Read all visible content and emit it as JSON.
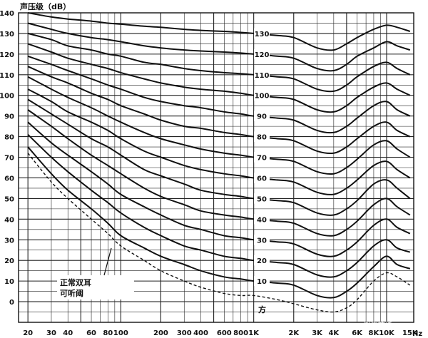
{
  "chart_data": {
    "type": "line",
    "title": "",
    "ylabel": "声压级（dB）",
    "xlabel": "",
    "x_unit": "Hz",
    "x_scale": "log",
    "xlim": [
      17,
      16000
    ],
    "ylim": [
      -10,
      140
    ],
    "grid": true,
    "y_ticks": [
      0,
      10,
      20,
      30,
      40,
      50,
      60,
      70,
      80,
      90,
      100,
      110,
      120,
      130,
      140
    ],
    "x_tick_labels": [
      {
        "x": 20,
        "label": "20"
      },
      {
        "x": 30,
        "label": "30"
      },
      {
        "x": 40,
        "label": "40"
      },
      {
        "x": 60,
        "label": "60"
      },
      {
        "x": 80,
        "label": "80"
      },
      {
        "x": 100,
        "label": "100"
      },
      {
        "x": 200,
        "label": "200"
      },
      {
        "x": 300,
        "label": "300"
      },
      {
        "x": 400,
        "label": "400"
      },
      {
        "x": 600,
        "label": "600"
      },
      {
        "x": 800,
        "label": "800"
      },
      {
        "x": 1000,
        "label": "1K"
      },
      {
        "x": 2000,
        "label": "2K"
      },
      {
        "x": 3000,
        "label": "3K"
      },
      {
        "x": 4000,
        "label": "4K"
      },
      {
        "x": 6000,
        "label": "6K"
      },
      {
        "x": 8000,
        "label": "8K"
      },
      {
        "x": 10000,
        "label": "10K"
      },
      {
        "x": 15000,
        "label": "15K"
      }
    ],
    "contour_unit_label": "方",
    "threshold_label_lines": [
      "正常双耳",
      "可听阈"
    ],
    "threshold_curve": {
      "x": [
        20,
        30,
        40,
        60,
        80,
        100,
        150,
        200,
        300,
        400,
        600,
        800,
        1000,
        1500,
        2000,
        3000,
        4000,
        5000,
        6000,
        8000,
        10000,
        12000,
        15000
      ],
      "y": [
        72,
        58,
        50,
        40,
        33,
        27,
        20,
        15,
        10,
        7,
        4,
        3,
        3,
        1,
        -1,
        -4,
        -5,
        -3,
        1,
        10,
        14,
        12,
        8
      ]
    },
    "series": [
      {
        "name": "10",
        "x": [
          20,
          30,
          40,
          60,
          80,
          100,
          150,
          200,
          300,
          400,
          600,
          800,
          1000,
          1500,
          2000,
          3000,
          4000,
          5000,
          6000,
          8000,
          10000,
          12000,
          15000
        ],
        "y": [
          75,
          62,
          54,
          45,
          38,
          32,
          26,
          22,
          18,
          15,
          12,
          11,
          10,
          9,
          8,
          3,
          2,
          5,
          9,
          17,
          22,
          18,
          16
        ]
      },
      {
        "name": "20",
        "x": [
          20,
          30,
          40,
          60,
          80,
          100,
          150,
          200,
          300,
          400,
          600,
          800,
          1000,
          1500,
          2000,
          3000,
          4000,
          5000,
          6000,
          8000,
          10000,
          12000,
          15000
        ],
        "y": [
          81,
          70,
          63,
          54,
          48,
          43,
          36,
          32,
          27,
          25,
          22,
          21,
          20,
          19,
          18,
          13,
          12,
          15,
          19,
          27,
          30,
          26,
          24
        ]
      },
      {
        "name": "30",
        "x": [
          20,
          30,
          40,
          60,
          80,
          100,
          150,
          200,
          300,
          400,
          600,
          800,
          1000,
          1500,
          2000,
          3000,
          4000,
          5000,
          6000,
          8000,
          10000,
          12000,
          15000
        ],
        "y": [
          87,
          77,
          71,
          63,
          57,
          52,
          46,
          42,
          37,
          35,
          32,
          31,
          30,
          29,
          28,
          23,
          22,
          25,
          29,
          37,
          40,
          36,
          33
        ]
      },
      {
        "name": "40",
        "x": [
          20,
          30,
          40,
          60,
          80,
          100,
          150,
          200,
          300,
          400,
          600,
          800,
          1000,
          1500,
          2000,
          3000,
          4000,
          5000,
          6000,
          8000,
          10000,
          12000,
          15000
        ],
        "y": [
          93,
          85,
          79,
          71,
          66,
          62,
          55,
          51,
          47,
          44,
          42,
          41,
          40,
          39,
          38,
          33,
          32,
          35,
          39,
          47,
          50,
          46,
          42
        ]
      },
      {
        "name": "50",
        "x": [
          20,
          30,
          40,
          60,
          80,
          100,
          150,
          200,
          300,
          400,
          600,
          800,
          1000,
          1500,
          2000,
          3000,
          4000,
          5000,
          6000,
          8000,
          10000,
          12000,
          15000
        ],
        "y": [
          98,
          91,
          86,
          79,
          75,
          71,
          64,
          61,
          57,
          54,
          52,
          51,
          50,
          49,
          48,
          43,
          42,
          45,
          49,
          57,
          59,
          55,
          50
        ]
      },
      {
        "name": "60",
        "x": [
          20,
          30,
          40,
          60,
          80,
          100,
          150,
          200,
          300,
          400,
          600,
          800,
          1000,
          1500,
          2000,
          3000,
          4000,
          5000,
          6000,
          8000,
          10000,
          12000,
          15000
        ],
        "y": [
          103,
          97,
          92,
          87,
          83,
          79,
          73,
          70,
          66,
          64,
          62,
          61,
          60,
          59,
          58,
          53,
          52,
          55,
          59,
          66,
          68,
          64,
          60
        ]
      },
      {
        "name": "70",
        "x": [
          20,
          30,
          40,
          60,
          80,
          100,
          150,
          200,
          300,
          400,
          600,
          800,
          1000,
          1500,
          2000,
          3000,
          4000,
          5000,
          6000,
          8000,
          10000,
          12000,
          15000
        ],
        "y": [
          109,
          103,
          99,
          94,
          90,
          87,
          82,
          79,
          76,
          74,
          72,
          71,
          70,
          69,
          68,
          63,
          62,
          65,
          69,
          76,
          78,
          74,
          70
        ]
      },
      {
        "name": "80",
        "x": [
          20,
          30,
          40,
          60,
          80,
          100,
          150,
          200,
          300,
          400,
          600,
          800,
          1000,
          1500,
          2000,
          3000,
          4000,
          5000,
          6000,
          8000,
          10000,
          12000,
          15000
        ],
        "y": [
          114,
          109,
          106,
          101,
          98,
          95,
          91,
          88,
          85,
          84,
          82,
          81,
          80,
          79,
          78,
          73,
          72,
          75,
          79,
          85,
          87,
          83,
          80
        ]
      },
      {
        "name": "90",
        "x": [
          20,
          30,
          40,
          60,
          80,
          100,
          150,
          200,
          300,
          400,
          600,
          800,
          1000,
          1500,
          2000,
          3000,
          4000,
          5000,
          6000,
          8000,
          10000,
          12000,
          15000
        ],
        "y": [
          119,
          115,
          112,
          108,
          105,
          103,
          99,
          97,
          95,
          94,
          92,
          91,
          90,
          89,
          88,
          83,
          82,
          85,
          89,
          95,
          97,
          93,
          90
        ]
      },
      {
        "name": "100",
        "x": [
          20,
          30,
          40,
          60,
          80,
          100,
          150,
          200,
          300,
          400,
          600,
          800,
          1000,
          1500,
          2000,
          3000,
          4000,
          5000,
          6000,
          8000,
          10000,
          12000,
          15000
        ],
        "y": [
          125,
          121,
          118,
          115,
          113,
          111,
          108,
          106,
          104,
          103,
          102,
          101,
          100,
          99,
          98,
          93,
          92,
          95,
          99,
          104,
          106,
          103,
          100
        ]
      },
      {
        "name": "110",
        "x": [
          20,
          30,
          40,
          60,
          80,
          100,
          150,
          200,
          300,
          400,
          600,
          800,
          1000,
          1500,
          2000,
          3000,
          4000,
          5000,
          6000,
          8000,
          10000,
          12000,
          15000
        ],
        "y": [
          130,
          127,
          124,
          122,
          120,
          119,
          116,
          115,
          113,
          112,
          111,
          110.5,
          110,
          109,
          108,
          103,
          102,
          105,
          109,
          114,
          116,
          113,
          110
        ]
      },
      {
        "name": "120",
        "x": [
          20,
          30,
          40,
          60,
          80,
          100,
          150,
          200,
          300,
          400,
          600,
          800,
          1000,
          1500,
          2000,
          3000,
          4000,
          5000,
          6000,
          8000,
          10000,
          12000,
          15000
        ],
        "y": [
          135,
          132,
          130,
          128,
          127,
          126,
          124,
          123,
          122,
          121.5,
          121,
          120.5,
          120,
          119,
          118,
          113,
          112,
          115,
          119,
          123,
          126,
          124,
          122
        ]
      },
      {
        "name": "130",
        "x": [
          20,
          30,
          40,
          60,
          80,
          100,
          150,
          200,
          300,
          400,
          600,
          800,
          1000,
          1500,
          2000,
          3000,
          4000,
          5000,
          6000,
          8000,
          10000,
          12000,
          15000
        ],
        "y": [
          140,
          138,
          137,
          136,
          135,
          134.5,
          133.5,
          133,
          132,
          131.5,
          131,
          130.5,
          130,
          129,
          128,
          123,
          122,
          125,
          128,
          132,
          134,
          133,
          131
        ]
      }
    ]
  },
  "watermark": "CSDN @渤海蓝桥"
}
